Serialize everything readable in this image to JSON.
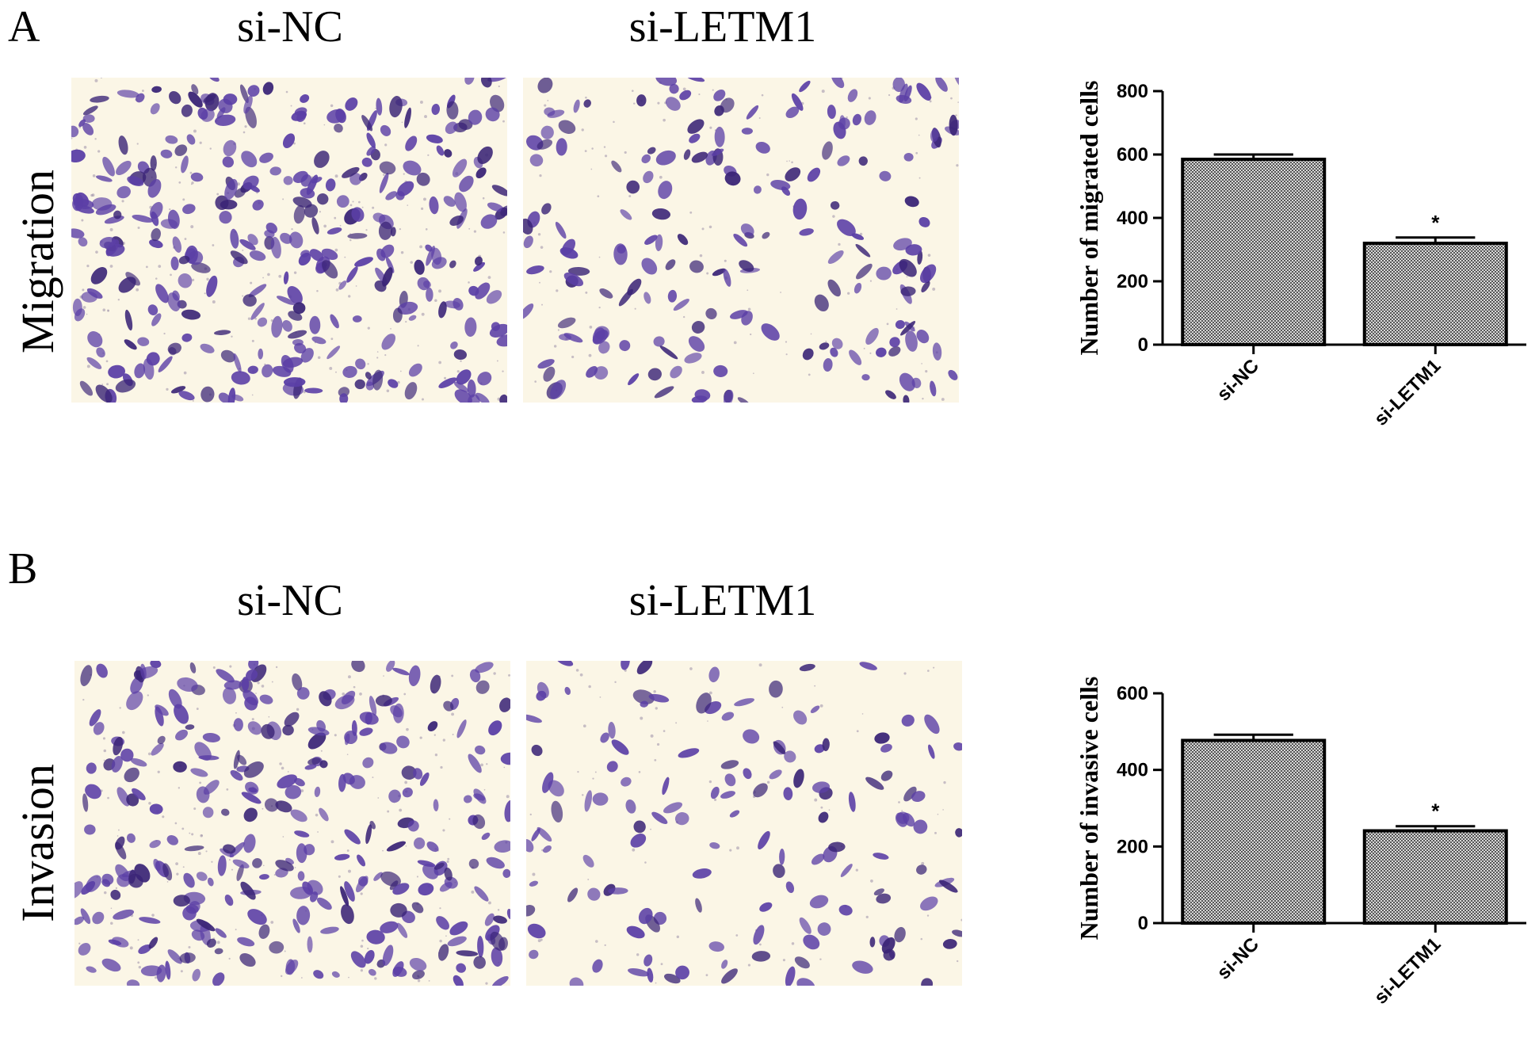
{
  "panels": {
    "A": {
      "letter": "A",
      "col1": "si-NC",
      "col2": "si-LETM1",
      "row": "Migration"
    },
    "B": {
      "letter": "B",
      "col1": "si-NC",
      "col2": "si-LETM1",
      "row": "Invasion"
    }
  },
  "colors": {
    "stain": "#5b3fa6",
    "stain_dark": "#3a2476",
    "background": "#fbf6e6",
    "bar_fill": "#9a9a9a"
  },
  "chart_data": [
    {
      "type": "bar",
      "title": "",
      "xlabel": "",
      "ylabel": "Number of migrated cells",
      "categories": [
        "si-NC",
        "si-LETM1"
      ],
      "values": [
        585,
        320
      ],
      "errors": [
        15,
        18
      ],
      "significance": [
        "",
        "*"
      ],
      "ylim": [
        0,
        800
      ],
      "yticks": [
        0,
        200,
        400,
        600,
        800
      ],
      "grid": false,
      "legend": "none"
    },
    {
      "type": "bar",
      "title": "",
      "xlabel": "",
      "ylabel": "Number of invasive cells",
      "categories": [
        "si-NC",
        "si-LETM1"
      ],
      "values": [
        477,
        241
      ],
      "errors": [
        15,
        12
      ],
      "significance": [
        "",
        "*"
      ],
      "ylim": [
        0,
        600
      ],
      "yticks": [
        0,
        200,
        400,
        600
      ],
      "grid": false,
      "legend": "none"
    }
  ]
}
